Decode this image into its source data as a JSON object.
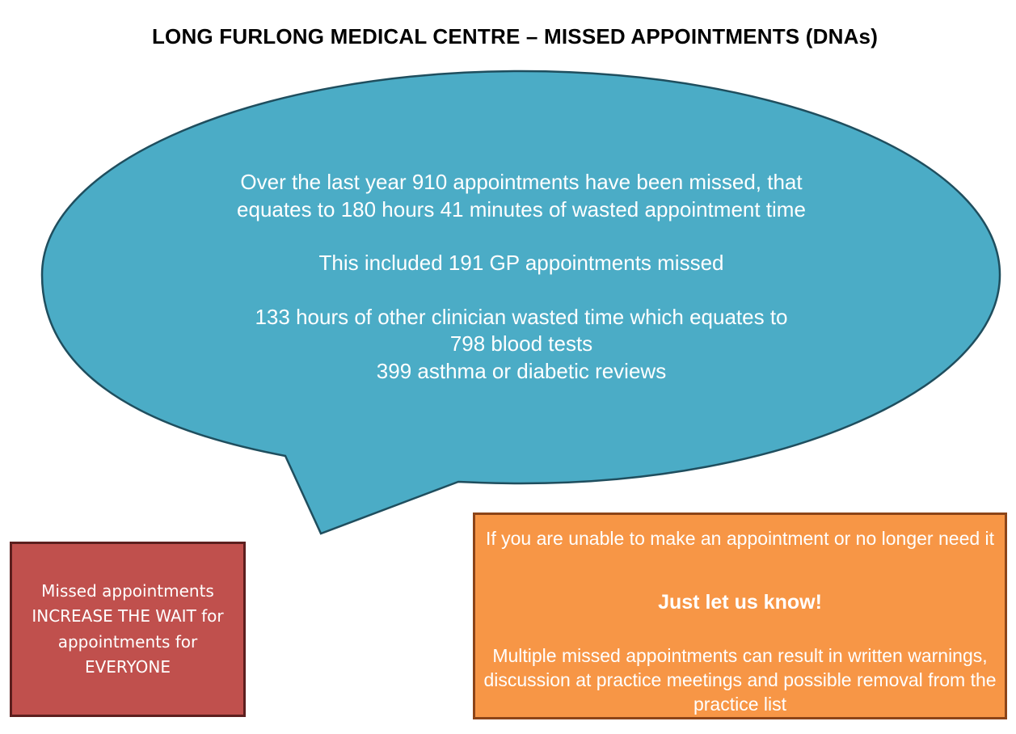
{
  "header": {
    "title": "LONG FURLONG MEDICAL CENTRE – MISSED APPOINTMENTS (DNAs)"
  },
  "bubble": {
    "fill_color": "#4bacc6",
    "border_color": "#1f4e5e",
    "lines": {
      "line1": "Over the last year 910 appointments have been missed, that",
      "line2": "equates to 180 hours 41 minutes of wasted appointment time",
      "line3": "This included 191 GP appointments missed",
      "line4": "133 hours of other clinician wasted time which equates to",
      "line5": "798 blood tests",
      "line6": "399 asthma or diabetic reviews"
    }
  },
  "warning_box": {
    "fill_color": "#c0504d",
    "lines": {
      "line1": "Missed appointments",
      "line2": "INCREASE THE WAIT for",
      "line3": "appointments for",
      "line4": "EVERYONE"
    }
  },
  "notice_box": {
    "fill_color": "#f79646",
    "intro": "If you are unable to make an appointment or no longer need it",
    "headline": "Just let us know!",
    "warning": "Multiple missed appointments can result in written warnings, discussion at practice meetings and possible removal from the practice list"
  }
}
